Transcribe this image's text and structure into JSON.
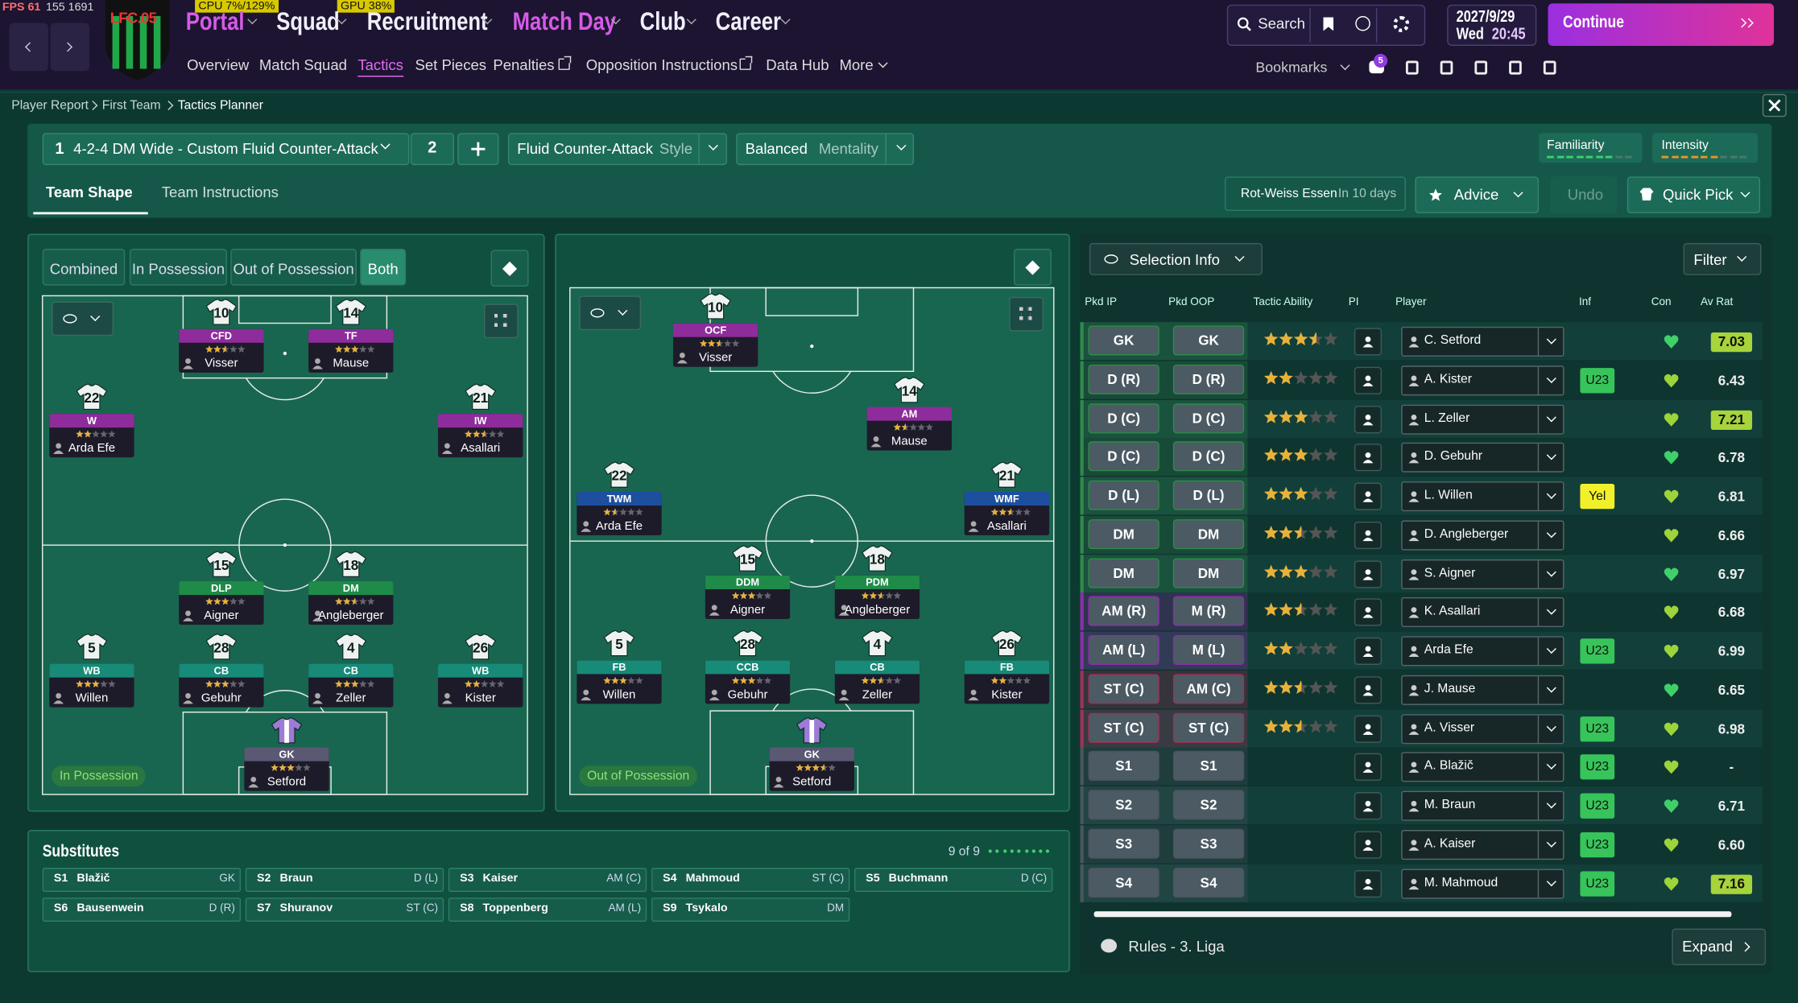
{
  "perf": {
    "fps": "FPS 61",
    "frames": "155 1691",
    "cpu": "CPU 7%/129%",
    "gpu": "GPU 38%"
  },
  "logo_text": "LFC.05",
  "nav": [
    {
      "label": "Portal",
      "color": "#d65ae6"
    },
    {
      "label": "Squad",
      "color": "#f2eefa"
    },
    {
      "label": "Recruitment",
      "color": "#f2eefa"
    },
    {
      "label": "Match Day",
      "color": "#d65ae6"
    },
    {
      "label": "Club",
      "color": "#f2eefa"
    },
    {
      "label": "Career",
      "color": "#f2eefa"
    }
  ],
  "subnav": {
    "items": [
      "Overview",
      "Match Squad",
      "Tactics",
      "Set Pieces",
      "Penalties",
      "Opposition Instructions",
      "Data Hub",
      "More"
    ],
    "active": 2
  },
  "search": "Search",
  "date": {
    "day": "2027/9/29",
    "weekday": "Wed",
    "time": "20:45"
  },
  "continue": "Continue",
  "bookmarks": "Bookmarks",
  "notification_count": 5,
  "breadcrumb": [
    "Player Report",
    "First Team",
    "Tactics Planner"
  ],
  "tactic": {
    "slot": 1,
    "name": "4-2-4 DM Wide - Custom Fluid Counter-Attack",
    "second_slot": 2,
    "style_value": "Fluid Counter-Attack",
    "style_label": "Style",
    "mentality_value": "Balanced",
    "mentality_label": "Mentality",
    "familiarity": "Familiarity",
    "intensity": "Intensity"
  },
  "tabs": {
    "items": [
      "Team Shape",
      "Team Instructions"
    ],
    "active": 0
  },
  "opponent": {
    "name": "Rot-Weiss Essen",
    "when": "In 10 days"
  },
  "buttons": {
    "advice": "Advice",
    "undo": "Undo",
    "quick_pick": "Quick Pick"
  },
  "view_filters": {
    "items": [
      "Combined",
      "In Possession",
      "Out of Possession",
      "Both"
    ],
    "active": 3
  },
  "pitches": [
    {
      "phase": "In Possession",
      "players": [
        {
          "number": 10,
          "role": "CFD",
          "stars": 2.5,
          "name": "Visser",
          "color": "#8f2c9c"
        },
        {
          "number": 14,
          "role": "TF",
          "stars": 3,
          "name": "Mause",
          "color": "#8f2c9c"
        },
        {
          "number": 22,
          "role": "W",
          "stars": 2,
          "name": "Arda Efe",
          "color": "#8f2c9c"
        },
        {
          "number": 21,
          "role": "IW",
          "stars": 2.5,
          "name": "Asallari",
          "color": "#8f2c9c"
        },
        {
          "number": 15,
          "role": "DLP",
          "stars": 3,
          "name": "Aigner",
          "color": "#1f8b48"
        },
        {
          "number": 18,
          "role": "DM",
          "stars": 2.5,
          "name": "Angleberger",
          "color": "#1f8b48"
        },
        {
          "number": 5,
          "role": "WB",
          "stars": 3,
          "name": "Willen",
          "color": "#178a78"
        },
        {
          "number": 28,
          "role": "CB",
          "stars": 3,
          "name": "Gebuhr",
          "color": "#178a78"
        },
        {
          "number": 4,
          "role": "CB",
          "stars": 3,
          "name": "Zeller",
          "color": "#178a78"
        },
        {
          "number": 26,
          "role": "WB",
          "stars": 2,
          "name": "Kister",
          "color": "#178a78"
        },
        {
          "role": "GK",
          "stars": 3,
          "name": "Setford",
          "color": "#5b5874"
        }
      ]
    },
    {
      "phase": "Out of Possession",
      "players": [
        {
          "number": 10,
          "role": "OCF",
          "stars": 2.5,
          "name": "Visser",
          "color": "#8f2c9c"
        },
        {
          "number": 14,
          "role": "AM",
          "stars": 1.5,
          "name": "Mause",
          "color": "#8f2c9c"
        },
        {
          "number": 22,
          "role": "TWM",
          "stars": 1.5,
          "name": "Arda Efe",
          "color": "#1d4f9e"
        },
        {
          "number": 21,
          "role": "WMF",
          "stars": 2.5,
          "name": "Asallari",
          "color": "#1d4f9e"
        },
        {
          "number": 15,
          "role": "DDM",
          "stars": 3,
          "name": "Aigner",
          "color": "#1f8b48"
        },
        {
          "number": 18,
          "role": "PDM",
          "stars": 2.5,
          "name": "Angleberger",
          "color": "#1f8b48"
        },
        {
          "number": 5,
          "role": "FB",
          "stars": 3,
          "name": "Willen",
          "color": "#178a78"
        },
        {
          "number": 28,
          "role": "CCB",
          "stars": 3,
          "name": "Gebuhr",
          "color": "#178a78"
        },
        {
          "number": 4,
          "role": "CB",
          "stars": 2.5,
          "name": "Zeller",
          "color": "#178a78"
        },
        {
          "number": 26,
          "role": "FB",
          "stars": 2,
          "name": "Kister",
          "color": "#178a78"
        },
        {
          "role": "GK",
          "stars": 3.5,
          "name": "Setford",
          "color": "#5b5874"
        }
      ]
    }
  ],
  "substitutes": {
    "title": "Substitutes",
    "count": "9 of 9",
    "items": [
      {
        "slot": "S1",
        "name": "Blažič",
        "position": "GK"
      },
      {
        "slot": "S2",
        "name": "Braun",
        "position": "D (L)"
      },
      {
        "slot": "S3",
        "name": "Kaiser",
        "position": "AM (C)"
      },
      {
        "slot": "S4",
        "name": "Mahmoud",
        "position": "ST (C)"
      },
      {
        "slot": "S5",
        "name": "Buchmann",
        "position": "D (C)"
      },
      {
        "slot": "S6",
        "name": "Bausenwein",
        "position": "D (R)"
      },
      {
        "slot": "S7",
        "name": "Shuranov",
        "position": "ST (C)"
      },
      {
        "slot": "S8",
        "name": "Toppenberg",
        "position": "AM (L)"
      },
      {
        "slot": "S9",
        "name": "Tsykalo",
        "position": "DM"
      }
    ]
  },
  "selection": {
    "title": "Selection Info",
    "filter": "Filter",
    "headers": [
      "Pkd IP",
      "Pkd OOP",
      "Tactic Ability",
      "PI",
      "Player",
      "Inf",
      "Con",
      "Av Rat"
    ],
    "rows": [
      {
        "ip": "GK",
        "oop": "GK",
        "stars": 3.5,
        "player": "C. Setford",
        "rating": "7.03",
        "highlight": true,
        "color": "#2f8a4a"
      },
      {
        "ip": "D (R)",
        "oop": "D (R)",
        "stars": 2,
        "player": "A. Kister",
        "inf": "U23",
        "inf_color": "#37c45a",
        "rating": "6.43",
        "color": "#2f8a4a"
      },
      {
        "ip": "D (C)",
        "oop": "D (C)",
        "stars": 3,
        "player": "L. Zeller",
        "rating": "7.21",
        "highlight": true,
        "color": "#2f8a4a"
      },
      {
        "ip": "D (C)",
        "oop": "D (C)",
        "stars": 3,
        "player": "D. Gebuhr",
        "rating": "6.78",
        "color": "#2f8a4a"
      },
      {
        "ip": "D (L)",
        "oop": "D (L)",
        "stars": 3,
        "player": "L. Willen",
        "inf": "Yel",
        "inf_color": "#f2f02a",
        "rating": "6.81",
        "color": "#2f8a4a"
      },
      {
        "ip": "DM",
        "oop": "DM",
        "stars": 2.5,
        "player": "D. Angleberger",
        "rating": "6.66",
        "color": "#2f8a4a"
      },
      {
        "ip": "DM",
        "oop": "DM",
        "stars": 3,
        "player": "S. Aigner",
        "rating": "6.97",
        "color": "#2f8a4a"
      },
      {
        "ip": "AM (R)",
        "oop": "M (R)",
        "stars": 2.5,
        "player": "K. Asallari",
        "rating": "6.68",
        "color": "#8a2fa8"
      },
      {
        "ip": "AM (L)",
        "oop": "M (L)",
        "stars": 2,
        "player": "Arda Efe",
        "inf": "U23",
        "inf_color": "#37c45a",
        "rating": "6.99",
        "color": "#8a2fa8"
      },
      {
        "ip": "ST (C)",
        "oop": "AM (C)",
        "stars": 2.5,
        "player": "J. Mause",
        "rating": "6.65",
        "color": "#a0305a"
      },
      {
        "ip": "ST (C)",
        "oop": "ST (C)",
        "stars": 2.5,
        "player": "A. Visser",
        "inf": "U23",
        "inf_color": "#37c45a",
        "rating": "6.98",
        "color": "#a0305a"
      },
      {
        "ip": "S1",
        "oop": "S1",
        "player": "A. Blažič",
        "inf": "U23",
        "inf_color": "#37c45a",
        "rating": "-",
        "color": "#4a5560"
      },
      {
        "ip": "S2",
        "oop": "S2",
        "player": "M. Braun",
        "inf": "U23",
        "inf_color": "#37c45a",
        "rating": "6.71",
        "color": "#4a5560"
      },
      {
        "ip": "S3",
        "oop": "S3",
        "player": "A. Kaiser",
        "inf": "U23",
        "inf_color": "#37c45a",
        "rating": "6.60",
        "color": "#4a5560"
      },
      {
        "ip": "S4",
        "oop": "S4",
        "player": "M. Mahmoud",
        "inf": "U23",
        "inf_color": "#37c45a",
        "rating": "7.16",
        "highlight": true,
        "color": "#4a5560"
      }
    ]
  },
  "footer": {
    "rules": "Rules - 3. Liga",
    "expand": "Expand"
  }
}
